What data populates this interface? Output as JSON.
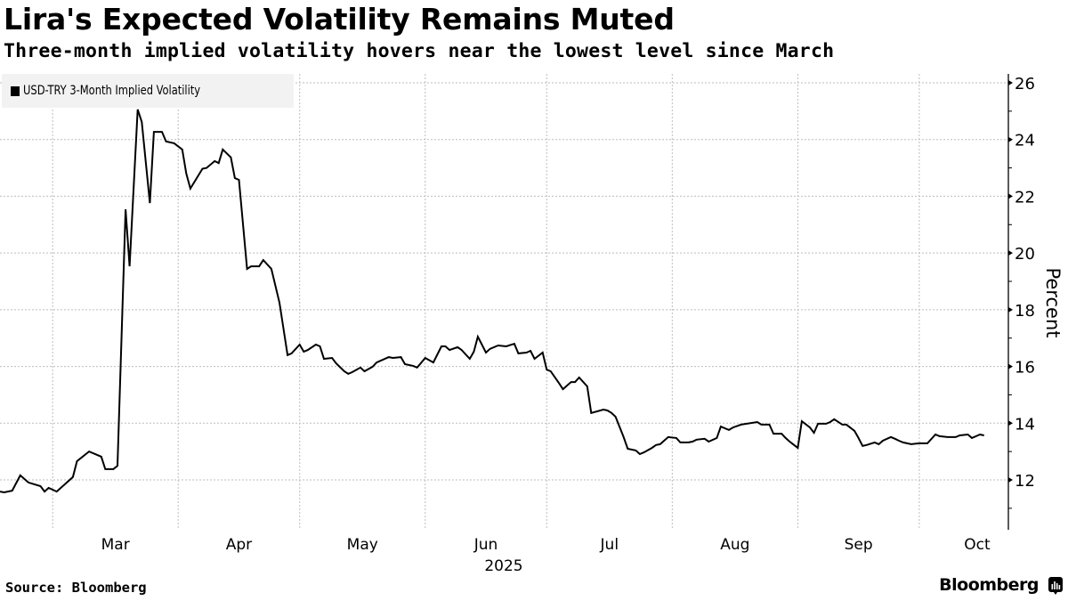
{
  "header": {
    "title": "Lira's Expected Volatility Remains Muted",
    "subtitle": "Three-month implied volatility hovers near the lowest level since March"
  },
  "footer": {
    "source": "Source: Bloomberg",
    "brand": "Bloomberg",
    "brand_icon": "bloomberg-terminal-icon"
  },
  "colors": {
    "line": "#000000",
    "grid": "#bdbdbd",
    "legend_bg": "#f2f2f2"
  },
  "chart_data": {
    "type": "line",
    "title": "Lira's Expected Volatility Remains Muted",
    "subtitle": "Three-month implied volatility hovers near the lowest level since March",
    "xlabel": "2025",
    "ylabel": "Percent",
    "x_axis_label": "2025",
    "y_axis_side": "right",
    "legend_position": "top-left",
    "grid": true,
    "xlim": [
      "2025-02-16",
      "2025-10-23"
    ],
    "ylim": [
      10.3,
      26.3
    ],
    "yticks": [
      12,
      14,
      16,
      18,
      20,
      22,
      24,
      26
    ],
    "xticks": [
      {
        "label": "Mar",
        "start": "2025-03-01",
        "end": "2025-04-01"
      },
      {
        "label": "Apr",
        "start": "2025-04-01",
        "end": "2025-05-01"
      },
      {
        "label": "May",
        "start": "2025-05-01",
        "end": "2025-06-01"
      },
      {
        "label": "Jun",
        "start": "2025-06-01",
        "end": "2025-07-01"
      },
      {
        "label": "Jul",
        "start": "2025-07-01",
        "end": "2025-08-01"
      },
      {
        "label": "Aug",
        "start": "2025-08-01",
        "end": "2025-09-01"
      },
      {
        "label": "Sep",
        "start": "2025-09-01",
        "end": "2025-10-01"
      },
      {
        "label": "Oct",
        "start": "2025-10-01",
        "end": "2025-11-01"
      }
    ],
    "source": "Source: Bloomberg",
    "series": [
      {
        "name": "USD-TRY 3-Month Implied Volatility",
        "color": "#000000",
        "points": [
          [
            "2025-02-16",
            11.59
          ],
          [
            "2025-02-17",
            11.56
          ],
          [
            "2025-02-19",
            11.62
          ],
          [
            "2025-02-21",
            12.16
          ],
          [
            "2025-02-23",
            11.91
          ],
          [
            "2025-02-26",
            11.78
          ],
          [
            "2025-02-27",
            11.59
          ],
          [
            "2025-02-28",
            11.72
          ],
          [
            "2025-03-02",
            11.59
          ],
          [
            "2025-03-06",
            12.1
          ],
          [
            "2025-03-07",
            12.66
          ],
          [
            "2025-03-10",
            13.0
          ],
          [
            "2025-03-13",
            12.82
          ],
          [
            "2025-03-14",
            12.38
          ],
          [
            "2025-03-16",
            12.38
          ],
          [
            "2025-03-17",
            12.5
          ],
          [
            "2025-03-19",
            21.54
          ],
          [
            "2025-03-20",
            19.53
          ],
          [
            "2025-03-22",
            25.06
          ],
          [
            "2025-03-23",
            24.62
          ],
          [
            "2025-03-25",
            21.76
          ],
          [
            "2025-03-26",
            24.27
          ],
          [
            "2025-03-28",
            24.27
          ],
          [
            "2025-03-29",
            23.93
          ],
          [
            "2025-03-31",
            23.87
          ],
          [
            "2025-04-02",
            23.65
          ],
          [
            "2025-04-03",
            22.8
          ],
          [
            "2025-04-04",
            22.27
          ],
          [
            "2025-04-07",
            22.97
          ],
          [
            "2025-04-08",
            23.0
          ],
          [
            "2025-04-10",
            23.24
          ],
          [
            "2025-04-11",
            23.17
          ],
          [
            "2025-04-12",
            23.65
          ],
          [
            "2025-04-14",
            23.37
          ],
          [
            "2025-04-15",
            22.64
          ],
          [
            "2025-04-16",
            22.58
          ],
          [
            "2025-04-18",
            19.44
          ],
          [
            "2025-04-19",
            19.53
          ],
          [
            "2025-04-21",
            19.53
          ],
          [
            "2025-04-22",
            19.75
          ],
          [
            "2025-04-24",
            19.44
          ],
          [
            "2025-04-26",
            18.25
          ],
          [
            "2025-04-28",
            16.4
          ],
          [
            "2025-04-29",
            16.46
          ],
          [
            "2025-05-01",
            16.77
          ],
          [
            "2025-05-02",
            16.52
          ],
          [
            "2025-05-03",
            16.58
          ],
          [
            "2025-05-05",
            16.77
          ],
          [
            "2025-05-06",
            16.71
          ],
          [
            "2025-05-07",
            16.27
          ],
          [
            "2025-05-09",
            16.3
          ],
          [
            "2025-05-10",
            16.11
          ],
          [
            "2025-05-12",
            15.83
          ],
          [
            "2025-05-13",
            15.74
          ],
          [
            "2025-05-14",
            15.8
          ],
          [
            "2025-05-16",
            15.96
          ],
          [
            "2025-05-17",
            15.83
          ],
          [
            "2025-05-19",
            15.99
          ],
          [
            "2025-05-20",
            16.14
          ],
          [
            "2025-05-23",
            16.33
          ],
          [
            "2025-05-24",
            16.3
          ],
          [
            "2025-05-26",
            16.33
          ],
          [
            "2025-05-27",
            16.08
          ],
          [
            "2025-05-29",
            16.02
          ],
          [
            "2025-05-30",
            15.96
          ],
          [
            "2025-06-01",
            16.3
          ],
          [
            "2025-06-03",
            16.14
          ],
          [
            "2025-06-05",
            16.71
          ],
          [
            "2025-06-06",
            16.71
          ],
          [
            "2025-06-07",
            16.58
          ],
          [
            "2025-06-09",
            16.68
          ],
          [
            "2025-06-10",
            16.58
          ],
          [
            "2025-06-12",
            16.27
          ],
          [
            "2025-06-13",
            16.52
          ],
          [
            "2025-06-14",
            17.05
          ],
          [
            "2025-06-16",
            16.49
          ],
          [
            "2025-06-17",
            16.62
          ],
          [
            "2025-06-19",
            16.74
          ],
          [
            "2025-06-21",
            16.71
          ],
          [
            "2025-06-23",
            16.8
          ],
          [
            "2025-06-24",
            16.46
          ],
          [
            "2025-06-26",
            16.49
          ],
          [
            "2025-06-27",
            16.55
          ],
          [
            "2025-06-28",
            16.27
          ],
          [
            "2025-06-30",
            16.49
          ],
          [
            "2025-07-01",
            15.89
          ],
          [
            "2025-07-02",
            15.83
          ],
          [
            "2025-07-04",
            15.42
          ],
          [
            "2025-07-05",
            15.2
          ],
          [
            "2025-07-07",
            15.45
          ],
          [
            "2025-07-08",
            15.45
          ],
          [
            "2025-07-09",
            15.61
          ],
          [
            "2025-07-11",
            15.3
          ],
          [
            "2025-07-12",
            14.36
          ],
          [
            "2025-07-15",
            14.48
          ],
          [
            "2025-07-16",
            14.45
          ],
          [
            "2025-07-17",
            14.36
          ],
          [
            "2025-07-18",
            14.23
          ],
          [
            "2025-07-20",
            13.51
          ],
          [
            "2025-07-21",
            13.1
          ],
          [
            "2025-07-23",
            13.04
          ],
          [
            "2025-07-24",
            12.91
          ],
          [
            "2025-07-25",
            12.97
          ],
          [
            "2025-07-27",
            13.13
          ],
          [
            "2025-07-28",
            13.23
          ],
          [
            "2025-07-29",
            13.26
          ],
          [
            "2025-07-31",
            13.51
          ],
          [
            "2025-08-02",
            13.48
          ],
          [
            "2025-08-03",
            13.32
          ],
          [
            "2025-08-05",
            13.32
          ],
          [
            "2025-08-06",
            13.35
          ],
          [
            "2025-08-07",
            13.42
          ],
          [
            "2025-08-09",
            13.45
          ],
          [
            "2025-08-10",
            13.35
          ],
          [
            "2025-08-12",
            13.48
          ],
          [
            "2025-08-13",
            13.88
          ],
          [
            "2025-08-15",
            13.76
          ],
          [
            "2025-08-16",
            13.85
          ],
          [
            "2025-08-18",
            13.95
          ],
          [
            "2025-08-22",
            14.04
          ],
          [
            "2025-08-23",
            13.95
          ],
          [
            "2025-08-25",
            13.95
          ],
          [
            "2025-08-26",
            13.63
          ],
          [
            "2025-08-28",
            13.63
          ],
          [
            "2025-08-29",
            13.48
          ],
          [
            "2025-08-30",
            13.35
          ],
          [
            "2025-09-01",
            13.13
          ],
          [
            "2025-09-02",
            14.07
          ],
          [
            "2025-09-04",
            13.85
          ],
          [
            "2025-09-05",
            13.66
          ],
          [
            "2025-09-06",
            13.98
          ],
          [
            "2025-09-08",
            13.98
          ],
          [
            "2025-09-09",
            14.04
          ],
          [
            "2025-09-10",
            14.14
          ],
          [
            "2025-09-12",
            13.95
          ],
          [
            "2025-09-13",
            13.95
          ],
          [
            "2025-09-15",
            13.73
          ],
          [
            "2025-09-16",
            13.48
          ],
          [
            "2025-09-17",
            13.2
          ],
          [
            "2025-09-18",
            13.23
          ],
          [
            "2025-09-20",
            13.32
          ],
          [
            "2025-09-21",
            13.26
          ],
          [
            "2025-09-22",
            13.38
          ],
          [
            "2025-09-24",
            13.51
          ],
          [
            "2025-09-25",
            13.45
          ],
          [
            "2025-09-26",
            13.38
          ],
          [
            "2025-09-27",
            13.32
          ],
          [
            "2025-09-29",
            13.26
          ],
          [
            "2025-10-01",
            13.29
          ],
          [
            "2025-10-03",
            13.29
          ],
          [
            "2025-10-05",
            13.6
          ],
          [
            "2025-10-06",
            13.54
          ],
          [
            "2025-10-08",
            13.51
          ],
          [
            "2025-10-10",
            13.51
          ],
          [
            "2025-10-11",
            13.57
          ],
          [
            "2025-10-13",
            13.6
          ],
          [
            "2025-10-14",
            13.48
          ],
          [
            "2025-10-16",
            13.6
          ],
          [
            "2025-10-17",
            13.57
          ]
        ]
      }
    ]
  }
}
